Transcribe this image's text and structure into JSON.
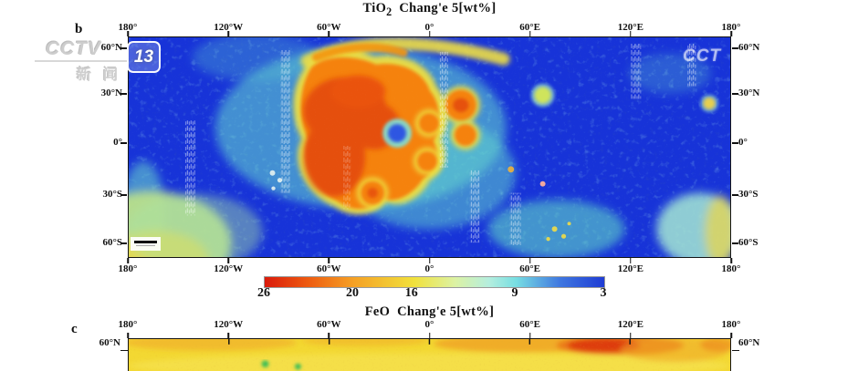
{
  "watermarks": {
    "station_logo_text": "CCTV",
    "channel_number": "13",
    "station_subtext": "新闻",
    "corner_logo_text": "CCT"
  },
  "panel_b": {
    "label": "b",
    "formula": "TiO",
    "formula_sub": "2",
    "title_suffix": "Chang'e 5[wt%]"
  },
  "panel_c": {
    "label": "c",
    "formula": "FeO",
    "title_suffix": "Chang'e 5[wt%]"
  },
  "colors": {
    "map_low_blue": "#1733d8",
    "map_cyan": "#66dbcd",
    "map_yellow": "#eede42",
    "map_orange": "#f5820f",
    "map_red": "#e2450b",
    "feo_base_yellow": "#f3d832",
    "feo_high_red": "#dd3a10"
  },
  "chart_data": [
    {
      "type": "heatmap",
      "panel": "b",
      "title": "TiO2 Chang'e 5[wt%]",
      "projection": "equirectangular lunar map",
      "x_tick_labels": [
        "180°",
        "120°W",
        "60°W",
        "0°",
        "60°E",
        "120°E",
        "180°"
      ],
      "y_tick_labels": [
        "60°N",
        "30°N",
        "0°",
        "30°S",
        "60°S"
      ],
      "grid": false,
      "colorbar": {
        "orientation": "horizontal",
        "units": "wt%",
        "tick_labels": [
          "26",
          "20",
          "16",
          "9",
          "3"
        ],
        "tick_values": [
          26,
          20,
          16,
          9,
          3
        ],
        "max_left": 26,
        "min_right": 3,
        "stops": [
          {
            "pos": 0.0,
            "color": "#da1a0b"
          },
          {
            "pos": 0.13,
            "color": "#ee5c10"
          },
          {
            "pos": 0.26,
            "color": "#f5a025"
          },
          {
            "pos": 0.44,
            "color": "#f1e13c"
          },
          {
            "pos": 0.56,
            "color": "#dcf2a3"
          },
          {
            "pos": 0.66,
            "color": "#b5eede"
          },
          {
            "pos": 0.74,
            "color": "#77dee2"
          },
          {
            "pos": 0.87,
            "color": "#3f77e0"
          },
          {
            "pos": 1.0,
            "color": "#1f3cd4"
          }
        ]
      },
      "value_pattern": [
        {
          "region": "highlands background (most of map)",
          "appearance": "blue",
          "approx_value_wt_pct": "3-6"
        },
        {
          "region": "large contiguous maria, ~80°W-10°E lon, ~45°N-25°S lat",
          "appearance": "orange-red with yellow fringe",
          "approx_value_wt_pct": "16-26"
        },
        {
          "region": "detached maria patches ~10°E-45°E, 25°N-10°S",
          "appearance": "orange blobs",
          "approx_value_wt_pct": "15-22"
        },
        {
          "region": "halo around maria",
          "appearance": "cyan-green speckle",
          "approx_value_wt_pct": "8-12"
        },
        {
          "region": "southwest corner near 180°/60°S",
          "appearance": "yellow-green wedge",
          "approx_value_wt_pct": "12-16"
        },
        {
          "region": "southeast sector ~30°E-60°E, 30°S-60°S and far SE corner",
          "appearance": "cyan-green speckle with yellow spots",
          "approx_value_wt_pct": "8-14"
        }
      ],
      "artifacts": "thin vertical white striping; white scale-bar box at lower left; semi-transparent CCTV-13 and CCT watermarks"
    },
    {
      "type": "heatmap",
      "panel": "c",
      "title": "FeO Chang'e 5[wt%]",
      "x_tick_labels": [
        "180°",
        "120°W",
        "60°W",
        "0°",
        "60°E",
        "120°E",
        "180°"
      ],
      "y_tick_labels": [
        "60°N"
      ],
      "visible_portion": "only the top ~60°N strip of the map is inside the screenshot",
      "value_pattern": [
        {
          "region": "whole visible strip",
          "appearance": "yellow (moderate FeO)"
        },
        {
          "region": "~60°E-150°E near 60°N",
          "appearance": "orange to red patch (high FeO)"
        },
        {
          "region": "two small spots near 60°W-30°W at strip bottom",
          "appearance": "green (low FeO)"
        }
      ]
    }
  ]
}
